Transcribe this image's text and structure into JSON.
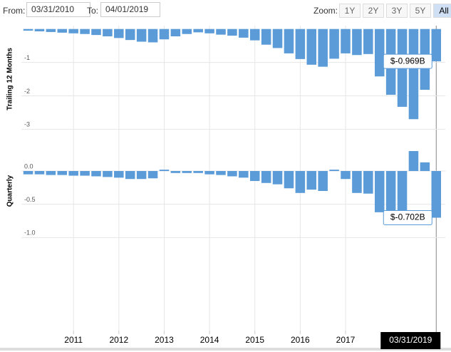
{
  "controls": {
    "from_label": "From:",
    "from_value": "03/31/2010",
    "to_label": "To:",
    "to_value": "04/01/2019",
    "zoom_label": "Zoom:",
    "zoom_buttons": [
      "1Y",
      "2Y",
      "3Y",
      "5Y",
      "All"
    ],
    "zoom_active": "All"
  },
  "crosshair_label": "03/31/2019",
  "chart_data": [
    {
      "type": "bar",
      "y_label": "Trailing 12 Months",
      "color": "#5b9bd8",
      "grid": true,
      "tooltip": "$-0.969B",
      "x": [
        2010,
        2010.25,
        2010.5,
        2010.75,
        2011,
        2011.25,
        2011.5,
        2011.75,
        2012,
        2012.25,
        2012.5,
        2012.75,
        2013,
        2013.25,
        2013.5,
        2013.75,
        2014,
        2014.25,
        2014.5,
        2014.75,
        2015,
        2015.25,
        2015.5,
        2015.75,
        2016,
        2016.25,
        2016.5,
        2016.75,
        2017,
        2017.25,
        2017.5,
        2017.75,
        2018,
        2018.25,
        2018.5,
        2018.75,
        2019
      ],
      "values": [
        -0.05,
        -0.07,
        -0.09,
        -0.11,
        -0.13,
        -0.15,
        -0.18,
        -0.22,
        -0.27,
        -0.33,
        -0.38,
        -0.4,
        -0.31,
        -0.22,
        -0.15,
        -0.1,
        -0.13,
        -0.17,
        -0.2,
        -0.26,
        -0.34,
        -0.47,
        -0.57,
        -0.73,
        -0.9,
        -1.07,
        -1.13,
        -0.89,
        -0.73,
        -0.78,
        -0.75,
        -1.42,
        -1.97,
        -2.33,
        -2.7,
        -1.82,
        -0.969
      ],
      "xlim": [
        2009.85,
        2019.2
      ],
      "xticks": [
        2011,
        2012,
        2013,
        2014,
        2015,
        2016,
        2017
      ],
      "ylim": [
        -3.1,
        0.1
      ],
      "yticks": [
        -1,
        -2,
        -3
      ]
    },
    {
      "type": "bar",
      "y_label": "Quarterly",
      "color": "#5b9bd8",
      "grid": true,
      "tooltip": "$-0.702B",
      "x": [
        2010,
        2010.25,
        2010.5,
        2010.75,
        2011,
        2011.25,
        2011.5,
        2011.75,
        2012,
        2012.25,
        2012.5,
        2012.75,
        2013,
        2013.25,
        2013.5,
        2013.75,
        2014,
        2014.25,
        2014.5,
        2014.75,
        2015,
        2015.25,
        2015.5,
        2015.75,
        2016,
        2016.25,
        2016.5,
        2016.75,
        2017,
        2017.25,
        2017.5,
        2017.75,
        2018,
        2018.25,
        2018.5,
        2018.75,
        2019
      ],
      "values": [
        -0.05,
        -0.05,
        -0.06,
        -0.06,
        -0.07,
        -0.07,
        -0.08,
        -0.09,
        -0.1,
        -0.12,
        -0.12,
        -0.11,
        0.02,
        -0.03,
        -0.03,
        -0.03,
        -0.05,
        -0.06,
        -0.08,
        -0.1,
        -0.15,
        -0.18,
        -0.2,
        -0.26,
        -0.33,
        -0.28,
        -0.3,
        0.02,
        -0.12,
        -0.33,
        -0.34,
        -0.62,
        -0.67,
        -0.64,
        0.3,
        0.13,
        -0.702
      ],
      "xlim": [
        2009.85,
        2019.2
      ],
      "xticks": [
        2011,
        2012,
        2013,
        2014,
        2015,
        2016,
        2017
      ],
      "ylim": [
        -1.05,
        0.45
      ],
      "yticks": [
        {
          "value": 0,
          "label": "0.0"
        },
        {
          "value": -0.5,
          "label": "-0.5"
        },
        {
          "value": -1,
          "label": "-1.0"
        }
      ]
    }
  ]
}
